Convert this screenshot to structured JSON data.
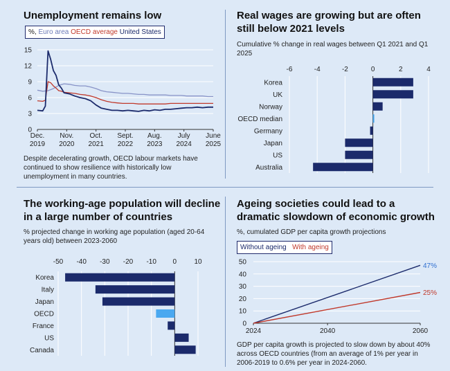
{
  "colors": {
    "navy": "#1b2a6b",
    "bright": "#4aa8f0",
    "euro": "#8893c7",
    "oecd": "#c0392b",
    "grid": "#ffffff"
  },
  "panel1": {
    "title": "Unemployment remains low",
    "legend": {
      "prefix": "%,",
      "euro": "Euro area",
      "oecd": "OECD average",
      "us": "United States"
    },
    "caption": "Despite decelerating growth, OECD labour markets have continued to show resilience with historically low unemployment in many countries."
  },
  "panel2": {
    "title": "Real wages are growing but are often still below 2021 levels",
    "subtitle": "Cumulative % change in real wages between Q1 2021 and Q1 2025"
  },
  "panel3": {
    "title": "The working-age population will decline in a large number of countries",
    "subtitle": "% projected change in working age population (aged 20-64 years old) between 2023-2060"
  },
  "panel4": {
    "title": "Ageing societies could lead to a dramatic slowdown of economic growth",
    "subtitle": "%, cumulated GDP per capita growth projections",
    "legend": {
      "without": "Without ageing",
      "with": "With ageing"
    },
    "caption": "GDP per capita growth is projected to slow down by about 40% across OECD countries (from an average of 1% per year in 2006-2019 to 0.6% per year in 2024-2060."
  },
  "chart_data": [
    {
      "type": "line",
      "title": "Unemployment remains low",
      "x_tick_labels": [
        [
          "Dec.",
          "2019"
        ],
        [
          "Nov.",
          "2020"
        ],
        [
          "Oct.",
          "2021"
        ],
        [
          "Sept.",
          "2022"
        ],
        [
          "Aug.",
          "2023"
        ],
        [
          "July",
          "2024"
        ],
        [
          "June",
          "2025"
        ]
      ],
      "xlim": [
        0,
        66
      ],
      "ylim": [
        0,
        15
      ],
      "yticks": [
        0,
        3,
        6,
        9,
        12,
        15
      ],
      "series": [
        {
          "name": "Euro area",
          "x": [
            0,
            2,
            4,
            6,
            8,
            10,
            12,
            14,
            16,
            18,
            20,
            22,
            24,
            26,
            28,
            30,
            32,
            34,
            36,
            38,
            40,
            42,
            44,
            46,
            48,
            50,
            52,
            54,
            56,
            58,
            60,
            62,
            64,
            66
          ],
          "values": [
            7.4,
            7.2,
            7.3,
            7.7,
            8.3,
            8.6,
            8.5,
            8.3,
            8.2,
            8.2,
            8.0,
            7.7,
            7.3,
            7.1,
            7.0,
            6.9,
            6.8,
            6.8,
            6.7,
            6.6,
            6.6,
            6.5,
            6.5,
            6.5,
            6.5,
            6.4,
            6.4,
            6.4,
            6.3,
            6.3,
            6.3,
            6.3,
            6.2,
            6.2
          ]
        },
        {
          "name": "OECD average",
          "x": [
            0,
            2,
            3,
            4,
            5,
            6,
            7,
            8,
            9,
            10,
            12,
            14,
            16,
            18,
            20,
            22,
            24,
            26,
            28,
            30,
            32,
            34,
            36,
            38,
            40,
            42,
            44,
            46,
            48,
            50,
            52,
            54,
            56,
            58,
            60,
            62,
            64,
            66
          ],
          "values": [
            5.4,
            5.3,
            5.5,
            9.0,
            8.8,
            8.2,
            7.8,
            7.3,
            7.2,
            7.0,
            6.9,
            6.8,
            6.6,
            6.5,
            6.3,
            6.0,
            5.6,
            5.3,
            5.1,
            5.0,
            4.9,
            4.9,
            4.9,
            4.8,
            4.8,
            4.8,
            4.8,
            4.8,
            4.8,
            4.9,
            4.9,
            4.9,
            4.9,
            4.9,
            4.9,
            4.9,
            4.9,
            4.9
          ]
        },
        {
          "name": "United States",
          "x": [
            0,
            2,
            3,
            4,
            5,
            6,
            7,
            8,
            9,
            10,
            12,
            14,
            16,
            18,
            20,
            22,
            24,
            26,
            28,
            30,
            32,
            34,
            36,
            38,
            40,
            42,
            44,
            46,
            48,
            50,
            52,
            54,
            56,
            58,
            60,
            62,
            64,
            66
          ],
          "values": [
            3.6,
            3.5,
            4.4,
            14.8,
            13.2,
            11.1,
            10.2,
            8.4,
            7.8,
            6.9,
            6.7,
            6.3,
            6.0,
            5.8,
            5.4,
            4.6,
            4.0,
            3.8,
            3.6,
            3.6,
            3.5,
            3.6,
            3.5,
            3.4,
            3.6,
            3.5,
            3.7,
            3.6,
            3.8,
            3.8,
            3.9,
            4.0,
            4.1,
            4.1,
            4.2,
            4.1,
            4.2,
            4.2
          ]
        }
      ]
    },
    {
      "type": "bar",
      "orientation": "horizontal",
      "title": "Real wages are growing but are often still below 2021 levels",
      "categories": [
        "Korea",
        "UK",
        "Norway",
        "OECD median",
        "Germany",
        "Japan",
        "US",
        "Australia"
      ],
      "values": [
        2.9,
        2.9,
        0.7,
        0.1,
        -0.2,
        -2.0,
        -2.0,
        -4.3
      ],
      "xlim": [
        -6,
        4
      ],
      "xticks": [
        -6,
        -4,
        -2,
        0,
        2,
        4
      ],
      "highlight": [
        "OECD median"
      ]
    },
    {
      "type": "bar",
      "orientation": "horizontal",
      "title": "The working-age population will decline in a large number of countries",
      "categories": [
        "Korea",
        "Italy",
        "Japan",
        "OECD",
        "France",
        "US",
        "Canada"
      ],
      "values": [
        -47,
        -34,
        -31,
        -8,
        -3,
        6,
        9
      ],
      "xlim": [
        -50,
        10
      ],
      "xticks": [
        -50,
        -40,
        -30,
        -20,
        -10,
        0,
        10
      ],
      "highlight": [
        "OECD"
      ]
    },
    {
      "type": "line",
      "title": "Ageing societies could lead to a dramatic slowdown of economic growth",
      "x": [
        2024,
        2060
      ],
      "xticks": [
        2024,
        2040,
        2060
      ],
      "ylim": [
        0,
        50
      ],
      "yticks": [
        0,
        10,
        20,
        30,
        40,
        50
      ],
      "series": [
        {
          "name": "Without ageing",
          "values": [
            0,
            47
          ],
          "end_label": "47%"
        },
        {
          "name": "With ageing",
          "values": [
            0,
            25
          ],
          "end_label": "25%"
        }
      ]
    }
  ]
}
